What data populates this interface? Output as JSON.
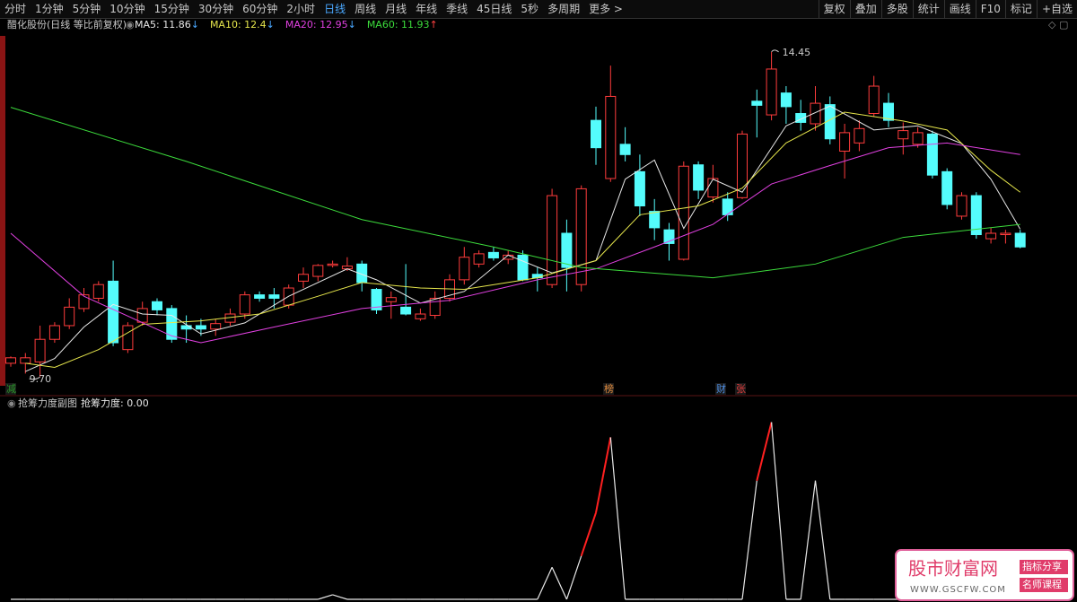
{
  "toolbar": {
    "left": [
      "分时",
      "1分钟",
      "5分钟",
      "10分钟",
      "15分钟",
      "30分钟",
      "60分钟",
      "2小时",
      "日线",
      "周线",
      "月线",
      "年线",
      "季线",
      "45日线",
      "5秒",
      "多周期",
      "更多 >"
    ],
    "active": "日线",
    "right": [
      "复权",
      "叠加",
      "多股",
      "统计",
      "画线",
      "F10",
      "标记",
      "+自选"
    ]
  },
  "chart_data": {
    "type": "candlestick",
    "title": "醋化股份(日线 等比前复权)",
    "ylim": [
      9.44,
      14.75
    ],
    "up_color": "#ff3c3c",
    "down_color": "#54fcfc",
    "max_label": "14.45",
    "min_label": "9.70",
    "open": [
      9.9,
      9.9,
      9.92,
      10.25,
      10.45,
      10.7,
      10.85,
      11.1,
      10.1,
      10.5,
      10.8,
      10.7,
      10.45,
      10.45,
      10.4,
      10.5,
      10.62,
      10.9,
      10.9,
      10.75,
      11.1,
      11.17,
      11.33,
      11.28,
      11.35,
      10.98,
      10.8,
      10.72,
      10.55,
      10.6,
      10.85,
      11.12,
      11.35,
      11.52,
      11.42,
      11.48,
      11.2,
      11.05,
      11.8,
      11.05,
      13.45,
      12.6,
      13.1,
      12.7,
      12.12,
      11.85,
      11.42,
      12.8,
      12.33,
      12.3,
      12.32,
      13.73,
      13.53,
      13.85,
      13.55,
      13.4,
      13.68,
      13.0,
      13.12,
      13.55,
      13.7,
      13.18,
      13.1,
      13.25,
      12.7,
      12.05,
      12.35,
      11.72,
      11.78,
      11.8
    ],
    "high": [
      10.0,
      10.05,
      10.45,
      10.5,
      10.85,
      11.0,
      11.1,
      11.4,
      10.5,
      10.8,
      10.85,
      10.75,
      10.6,
      10.55,
      10.55,
      10.7,
      10.95,
      10.95,
      11.0,
      11.05,
      11.3,
      11.35,
      11.4,
      11.45,
      11.4,
      11.0,
      10.95,
      11.35,
      10.7,
      10.95,
      11.2,
      11.6,
      11.55,
      11.6,
      11.55,
      11.55,
      11.3,
      12.45,
      12.0,
      12.5,
      13.65,
      14.25,
      13.35,
      12.95,
      12.3,
      11.95,
      12.85,
      12.85,
      12.8,
      12.4,
      13.3,
      13.9,
      14.45,
      13.95,
      13.75,
      13.95,
      13.8,
      13.4,
      13.45,
      14.1,
      13.85,
      13.42,
      13.35,
      13.3,
      12.75,
      12.4,
      12.4,
      11.88,
      11.85,
      11.85
    ],
    "low": [
      9.85,
      9.75,
      9.7,
      10.2,
      10.4,
      10.65,
      10.8,
      10.15,
      10.05,
      10.45,
      10.6,
      10.2,
      10.2,
      10.3,
      10.3,
      10.45,
      10.55,
      10.8,
      10.7,
      10.7,
      11.0,
      11.1,
      11.3,
      11.25,
      10.95,
      10.62,
      10.55,
      10.6,
      10.52,
      10.55,
      10.8,
      11.05,
      11.3,
      11.4,
      11.35,
      11.1,
      10.95,
      11.0,
      10.95,
      10.95,
      12.8,
      12.55,
      12.85,
      12.05,
      11.7,
      11.4,
      11.4,
      12.3,
      12.25,
      11.98,
      12.3,
      13.2,
      13.45,
      13.4,
      13.3,
      13.3,
      13.1,
      12.6,
      13.0,
      13.5,
      13.35,
      12.95,
      13.05,
      12.6,
      12.15,
      12.0,
      11.72,
      11.65,
      11.65,
      11.58
    ],
    "close": [
      9.98,
      9.98,
      10.25,
      10.45,
      10.72,
      10.9,
      11.05,
      10.2,
      10.45,
      10.7,
      10.68,
      10.25,
      10.4,
      10.4,
      10.48,
      10.62,
      10.9,
      10.85,
      10.85,
      11.0,
      11.2,
      11.33,
      11.35,
      11.32,
      11.08,
      10.68,
      10.86,
      10.62,
      10.62,
      10.85,
      11.12,
      11.45,
      11.5,
      11.44,
      11.48,
      11.12,
      11.15,
      12.35,
      11.3,
      12.45,
      13.05,
      13.8,
      12.95,
      12.2,
      11.88,
      11.65,
      12.78,
      12.43,
      12.6,
      12.07,
      13.25,
      13.67,
      14.2,
      13.65,
      13.42,
      13.7,
      13.18,
      13.27,
      13.33,
      13.95,
      13.45,
      13.3,
      13.27,
      12.65,
      12.22,
      12.35,
      11.78,
      11.8,
      11.8,
      11.6
    ],
    "series": [
      {
        "name": "MA5",
        "color": "#e8e8e8",
        "trend": "↓",
        "x": [
          1,
          3,
          5,
          7,
          9,
          11,
          13,
          16,
          19,
          23,
          25,
          28,
          31,
          34,
          37,
          40,
          42,
          44,
          46,
          48,
          50,
          53,
          56,
          59,
          62,
          65,
          67,
          69
        ],
        "values": [
          9.78,
          9.97,
          10.43,
          10.76,
          10.62,
          10.6,
          10.33,
          10.49,
          10.88,
          11.28,
          11.12,
          10.78,
          10.95,
          11.48,
          11.22,
          11.4,
          12.59,
          12.87,
          11.87,
          12.59,
          12.4,
          13.37,
          13.66,
          13.31,
          13.37,
          13.11,
          12.59,
          11.86
        ]
      },
      {
        "name": "MA10",
        "color": "#e6e64c",
        "trend": "↓",
        "x": [
          1,
          3,
          6,
          9,
          13,
          17,
          21,
          24,
          28,
          31,
          36,
          40,
          43,
          47,
          50,
          53,
          57,
          61,
          64,
          67,
          69
        ],
        "values": [
          9.9,
          9.84,
          10.1,
          10.47,
          10.52,
          10.62,
          10.88,
          11.08,
          11.0,
          10.98,
          11.15,
          11.4,
          12.07,
          12.2,
          12.46,
          13.12,
          13.57,
          13.44,
          13.31,
          12.72,
          12.4
        ]
      },
      {
        "name": "MA20",
        "color": "#e040e0",
        "trend": "↓",
        "x": [
          0,
          5,
          11,
          13,
          18,
          24,
          30,
          36,
          40,
          44,
          48,
          52,
          56,
          60,
          64,
          69
        ],
        "values": [
          11.8,
          10.88,
          10.3,
          10.2,
          10.43,
          10.7,
          10.82,
          11.12,
          11.28,
          11.6,
          11.93,
          12.52,
          12.79,
          13.05,
          13.12,
          12.95
        ]
      },
      {
        "name": "MA60",
        "color": "#3cdc3c",
        "trend": "↑",
        "x": [
          0,
          12,
          24,
          33,
          39,
          48,
          55,
          61,
          69
        ],
        "values": [
          13.64,
          12.85,
          12.0,
          11.6,
          11.3,
          11.15,
          11.35,
          11.74,
          11.93
        ]
      }
    ],
    "markers": [
      {
        "text": "减",
        "color": "#2a9a2a"
      },
      {
        "text": "榜",
        "color": "#e08a3c"
      },
      {
        "text": "财",
        "color": "#4c8ce0"
      },
      {
        "text": "张",
        "color": "#e03c3c"
      }
    ]
  },
  "indicator": {
    "title": "抢筹力度副图",
    "name": "抢筹力度",
    "value_label": "0.00",
    "ylim": [
      0,
      100
    ],
    "values": [
      0,
      0,
      0,
      0,
      0,
      0,
      0,
      0,
      0,
      0,
      0,
      0,
      0,
      0,
      0,
      0,
      0,
      0,
      0,
      0,
      0,
      0,
      2.4,
      0,
      0,
      0,
      0,
      0,
      0,
      0,
      0,
      0,
      0,
      0,
      0,
      0,
      0,
      17,
      0,
      23,
      46,
      86,
      0,
      0,
      0,
      0,
      0,
      0,
      0,
      0,
      0,
      63,
      94,
      0,
      0,
      63,
      0,
      0,
      0,
      0,
      0,
      0,
      0,
      0,
      0,
      0,
      0,
      0,
      0,
      0
    ]
  },
  "watermark": {
    "title": "股市财富网",
    "url": "WWW.GSCFW.COM",
    "tags": [
      "指标分享",
      "名师课程"
    ]
  }
}
